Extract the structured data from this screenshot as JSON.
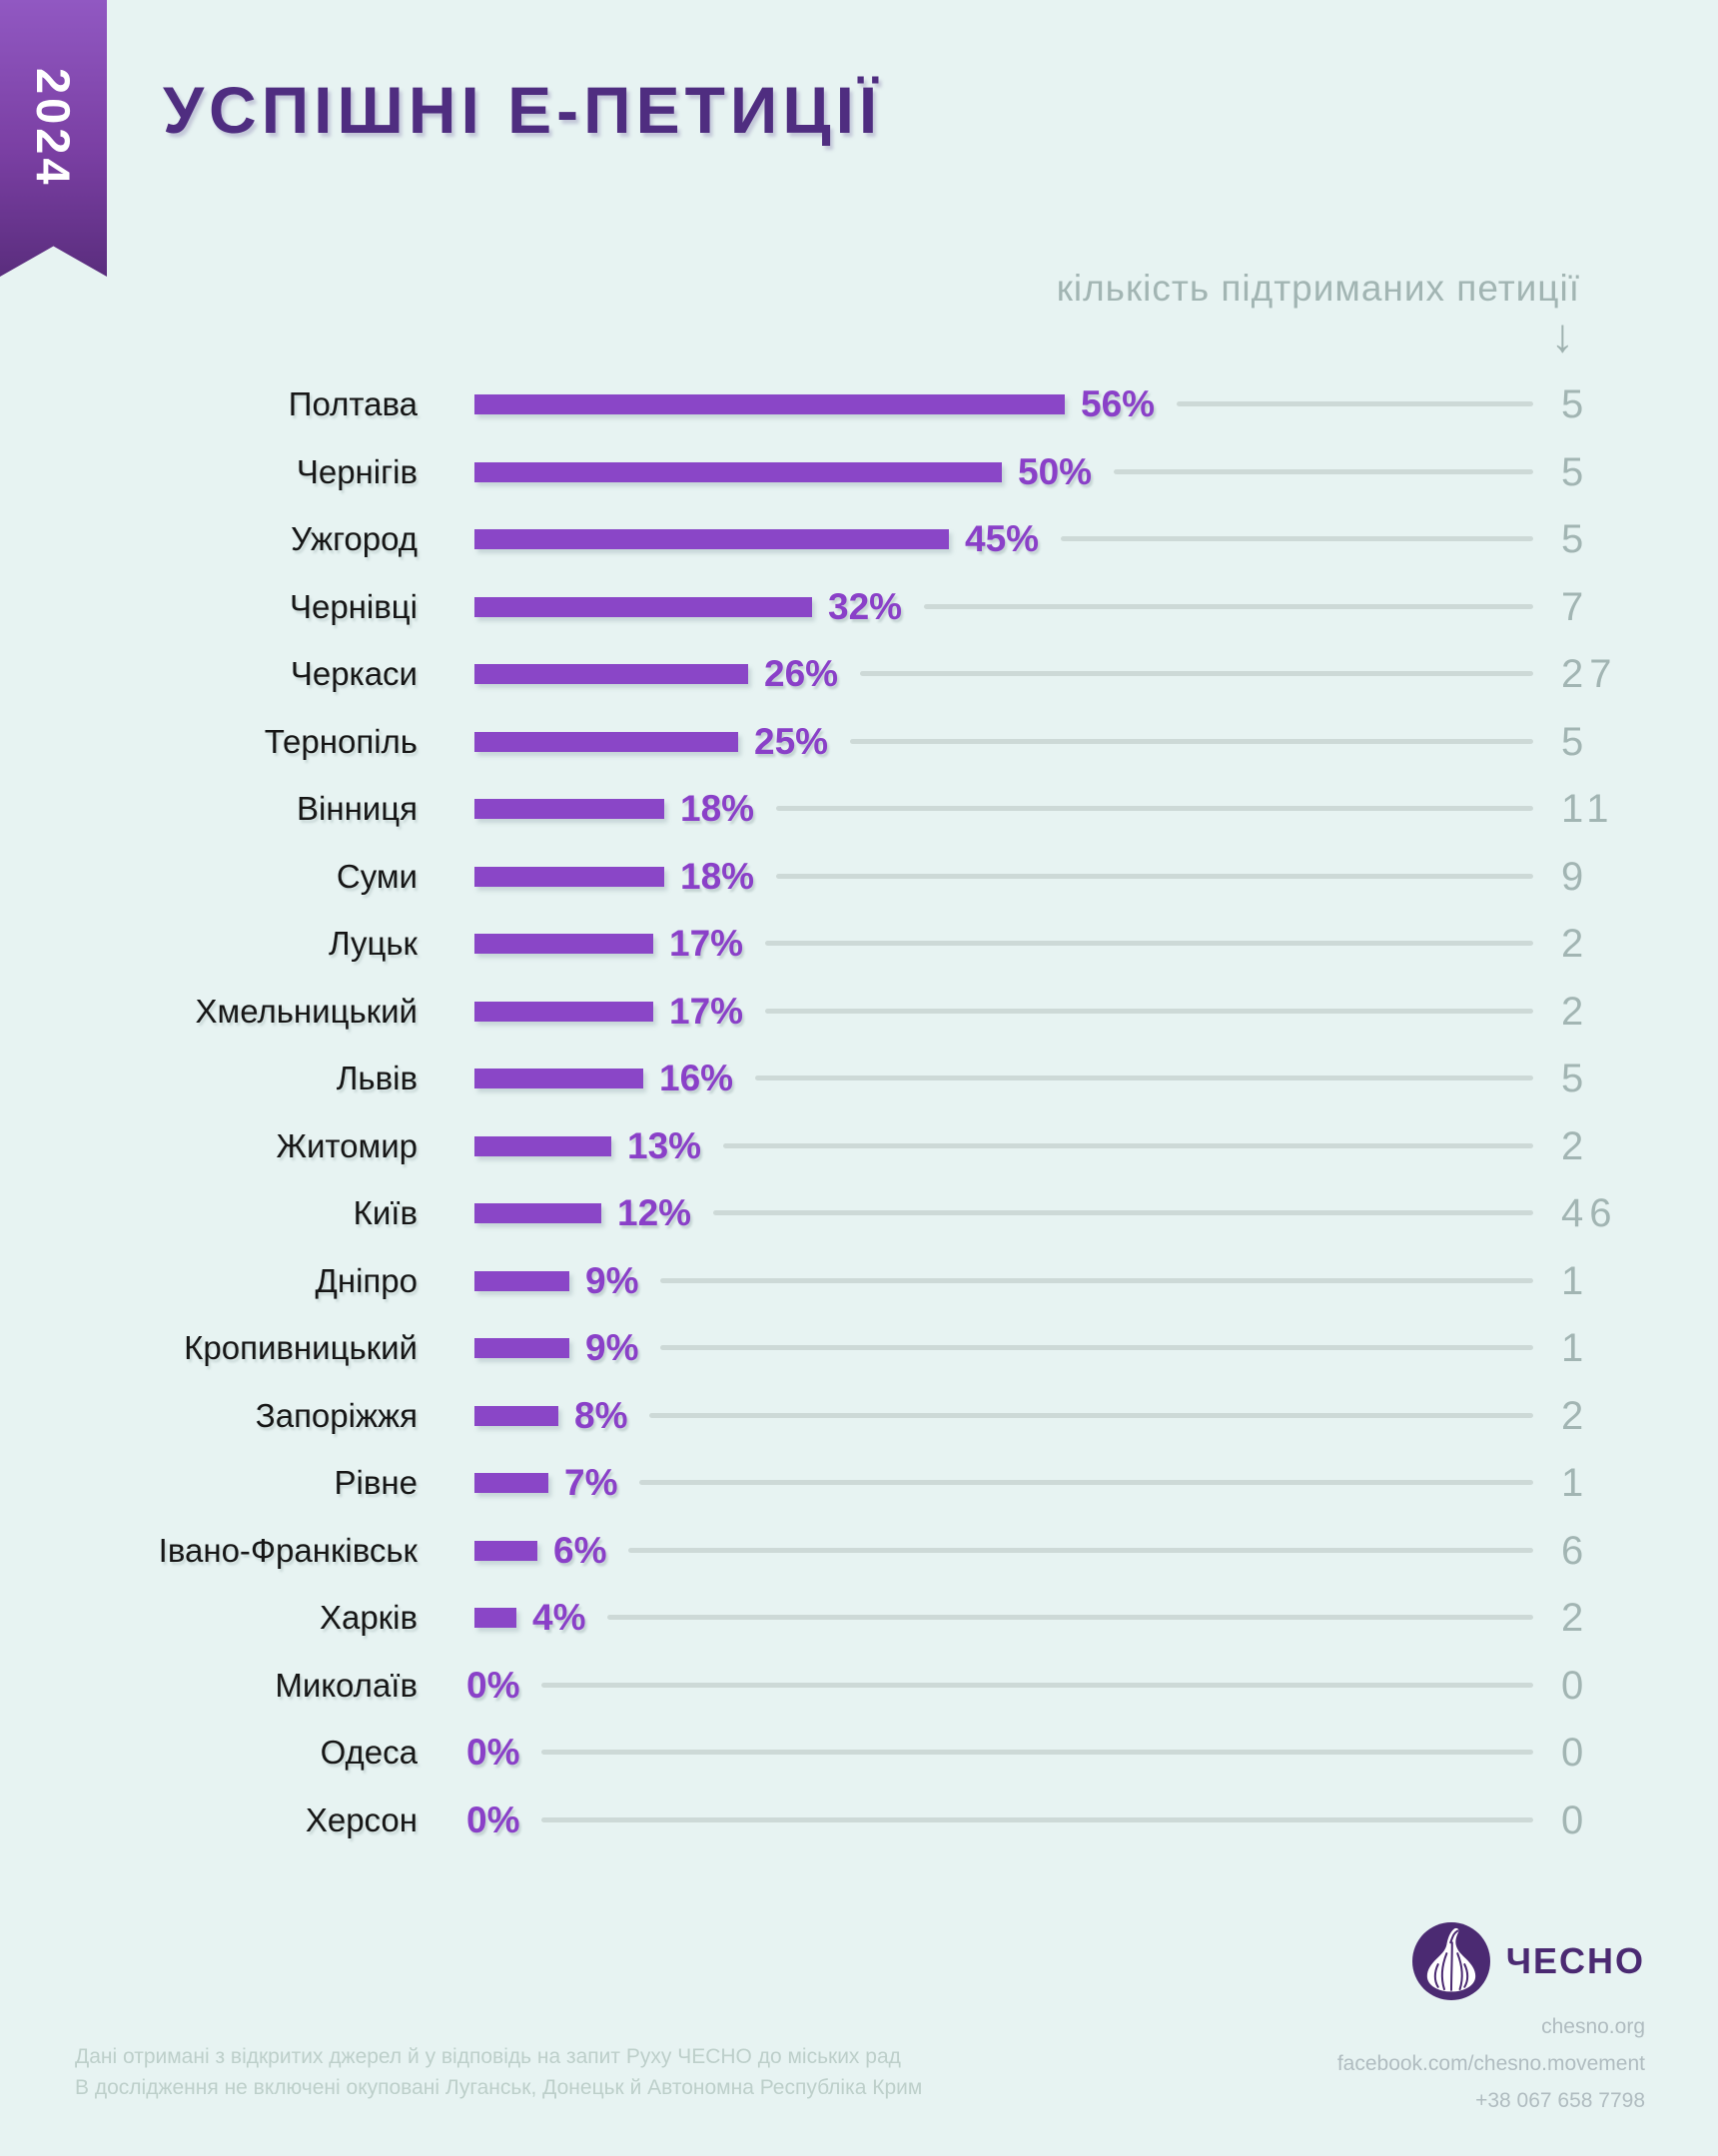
{
  "title": "УСПІШНІ Е-ПЕТИЦІЇ",
  "ribbon": {
    "year": "2024"
  },
  "count_header": {
    "label": "кількість підтриманих петиції",
    "arrow_glyph": "↓"
  },
  "chart_data": {
    "type": "bar",
    "orientation": "horizontal",
    "title": "УСПІШНІ Е-ПЕТИЦІЇ",
    "value_suffix": "%",
    "xlim": [
      0,
      100
    ],
    "categories": [
      "Полтава",
      "Чернігів",
      "Ужгород",
      "Чернівці",
      "Черкаси",
      "Тернопіль",
      "Вінниця",
      "Суми",
      "Луцьк",
      "Хмельницький",
      "Львів",
      "Житомир",
      "Київ",
      "Дніпро",
      "Кропивницький",
      "Запоріжжя",
      "Рівне",
      "Івано-Франківськ",
      "Харків",
      "Миколаїв",
      "Одеса",
      "Херсон"
    ],
    "values": [
      56,
      50,
      45,
      32,
      26,
      25,
      18,
      18,
      17,
      17,
      16,
      13,
      12,
      9,
      9,
      8,
      7,
      6,
      4,
      0,
      0,
      0
    ],
    "secondary_values": {
      "label": "кількість підтриманих петиції",
      "values": [
        5,
        5,
        5,
        7,
        27,
        5,
        11,
        9,
        2,
        2,
        5,
        2,
        46,
        1,
        1,
        2,
        1,
        6,
        2,
        0,
        0,
        0
      ]
    }
  },
  "footer": {
    "note_lines": [
      "Дані отримані з відкритих джерел й у відповідь на запит Руху ЧЕСНО до міських рад",
      "В дослідження не включені окуповані Луганськ, Донецьк й Автономна Республіка Крим"
    ],
    "brand": {
      "name": "ЧЕСНО",
      "logo": "garlic-icon",
      "website": "chesno.org",
      "facebook": "facebook.com/chesno.movement",
      "phone": "+38 067 658 7798"
    }
  },
  "colors": {
    "background": "#e7f3f2",
    "bar": "#8a46c7",
    "percent_text": "#8a40c8",
    "title": "#4f2d80",
    "ribbon_gradient_top": "#9158c2",
    "ribbon_gradient_bottom": "#5a2d7d",
    "muted_text": "#a2b5b3",
    "connector_line": "#cdd9d7",
    "footer_note": "#bdcfca",
    "brand_text": "#b0bcc0",
    "logo_purple": "#4b2a72",
    "city_label": "#161616"
  }
}
